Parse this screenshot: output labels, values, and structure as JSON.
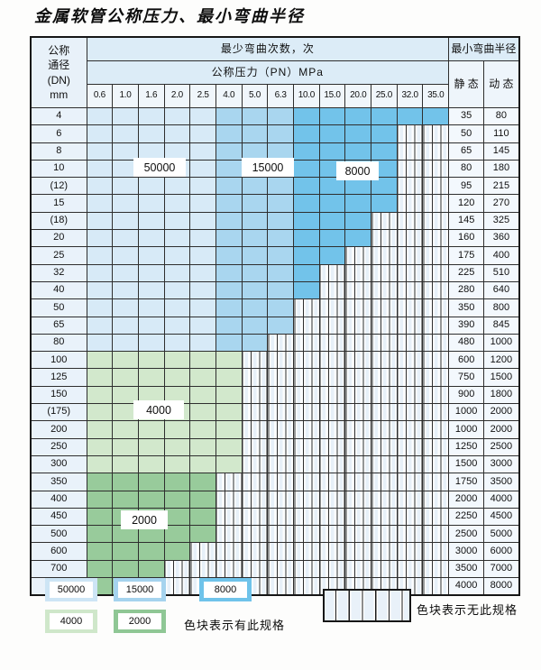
{
  "title": "金属软管公称压力、最小弯曲半径",
  "table": {
    "header": {
      "dn_lines": [
        "公称",
        "通径",
        "(DN)",
        "mm"
      ],
      "bend_cycles_label": "最少弯曲次数，次",
      "pressure_label": "公称压力（PN）MPa",
      "pressure_columns": [
        "0.6",
        "1.0",
        "1.6",
        "2.0",
        "2.5",
        "4.0",
        "5.0",
        "6.3",
        "10.0",
        "15.0",
        "20.0",
        "25.0",
        "32.0",
        "35.0"
      ],
      "radius_label": "最小弯曲半径",
      "static_label": "静 态",
      "dynamic_label": "动 态"
    },
    "blue_bands": [
      {
        "cycles": "50000",
        "from": "0.6",
        "to": "2.5"
      },
      {
        "cycles": "15000",
        "from": "4.0",
        "to": "6.3"
      },
      {
        "cycles": "8000",
        "from": "10.0",
        "to": "35.0"
      }
    ],
    "rows": [
      {
        "dn": "4",
        "max_pn": "35.0",
        "palette": "blue",
        "static": "35",
        "dynamic": "80"
      },
      {
        "dn": "6",
        "max_pn": "25.0",
        "palette": "blue",
        "static": "50",
        "dynamic": "110"
      },
      {
        "dn": "8",
        "max_pn": "25.0",
        "palette": "blue",
        "static": "65",
        "dynamic": "145"
      },
      {
        "dn": "10",
        "max_pn": "25.0",
        "palette": "blue",
        "static": "80",
        "dynamic": "180"
      },
      {
        "dn": "(12)",
        "max_pn": "25.0",
        "palette": "blue",
        "static": "95",
        "dynamic": "215"
      },
      {
        "dn": "15",
        "max_pn": "25.0",
        "palette": "blue",
        "static": "120",
        "dynamic": "270"
      },
      {
        "dn": "(18)",
        "max_pn": "20.0",
        "palette": "blue",
        "static": "145",
        "dynamic": "325"
      },
      {
        "dn": "20",
        "max_pn": "20.0",
        "palette": "blue",
        "static": "160",
        "dynamic": "360"
      },
      {
        "dn": "25",
        "max_pn": "15.0",
        "palette": "blue",
        "static": "175",
        "dynamic": "400"
      },
      {
        "dn": "32",
        "max_pn": "10.0",
        "palette": "blue",
        "static": "225",
        "dynamic": "510"
      },
      {
        "dn": "40",
        "max_pn": "10.0",
        "palette": "blue",
        "static": "280",
        "dynamic": "640"
      },
      {
        "dn": "50",
        "max_pn": "6.3",
        "palette": "blue",
        "static": "350",
        "dynamic": "800"
      },
      {
        "dn": "65",
        "max_pn": "6.3",
        "palette": "blue",
        "static": "390",
        "dynamic": "845"
      },
      {
        "dn": "80",
        "max_pn": "5.0",
        "palette": "blue",
        "static": "480",
        "dynamic": "1000"
      },
      {
        "dn": "100",
        "max_pn": "4.0",
        "palette": "green-4000",
        "static": "600",
        "dynamic": "1200"
      },
      {
        "dn": "125",
        "max_pn": "4.0",
        "palette": "green-4000",
        "static": "750",
        "dynamic": "1500"
      },
      {
        "dn": "150",
        "max_pn": "4.0",
        "palette": "green-4000",
        "static": "900",
        "dynamic": "1800"
      },
      {
        "dn": "(175)",
        "max_pn": "4.0",
        "palette": "green-4000",
        "static": "1000",
        "dynamic": "2000"
      },
      {
        "dn": "200",
        "max_pn": "4.0",
        "palette": "green-4000",
        "static": "1000",
        "dynamic": "2000"
      },
      {
        "dn": "250",
        "max_pn": "4.0",
        "palette": "green-4000",
        "static": "1250",
        "dynamic": "2500"
      },
      {
        "dn": "300",
        "max_pn": "4.0",
        "palette": "green-4000",
        "static": "1500",
        "dynamic": "3000"
      },
      {
        "dn": "350",
        "max_pn": "2.5",
        "palette": "green-2000",
        "static": "1750",
        "dynamic": "3500"
      },
      {
        "dn": "400",
        "max_pn": "2.5",
        "palette": "green-2000",
        "static": "2000",
        "dynamic": "4000"
      },
      {
        "dn": "450",
        "max_pn": "2.5",
        "palette": "green-2000",
        "static": "2250",
        "dynamic": "4500"
      },
      {
        "dn": "500",
        "max_pn": "2.5",
        "palette": "green-2000",
        "static": "2500",
        "dynamic": "5000"
      },
      {
        "dn": "600",
        "max_pn": "2.0",
        "palette": "green-2000",
        "static": "3000",
        "dynamic": "6000"
      },
      {
        "dn": "700",
        "max_pn": "1.6",
        "palette": "green-2000",
        "static": "3500",
        "dynamic": "7000"
      },
      {
        "dn": "800",
        "max_pn": "1.6",
        "palette": "green-2000",
        "static": "4000",
        "dynamic": "8000"
      }
    ]
  },
  "overlay_labels": [
    "50000",
    "15000",
    "8000",
    "4000",
    "2000"
  ],
  "colors": {
    "blue_50000": "#d7eaf7",
    "blue_15000": "#a9d6ef",
    "blue_8000": "#72c3ea",
    "green_4000": "#d2e8cc",
    "green_2000": "#98cb9b"
  },
  "legend": {
    "has_spec_items": [
      {
        "label": "50000",
        "color": "#cde5f5"
      },
      {
        "label": "15000",
        "color": "#a5d3ee"
      },
      {
        "label": "8000",
        "color": "#6fc3ea"
      },
      {
        "label": "4000",
        "color": "#cfe7ca"
      },
      {
        "label": "2000",
        "color": "#8fc795"
      }
    ],
    "has_spec_text": "色块表示有此规格",
    "no_spec_text": "色块表示无此规格"
  }
}
